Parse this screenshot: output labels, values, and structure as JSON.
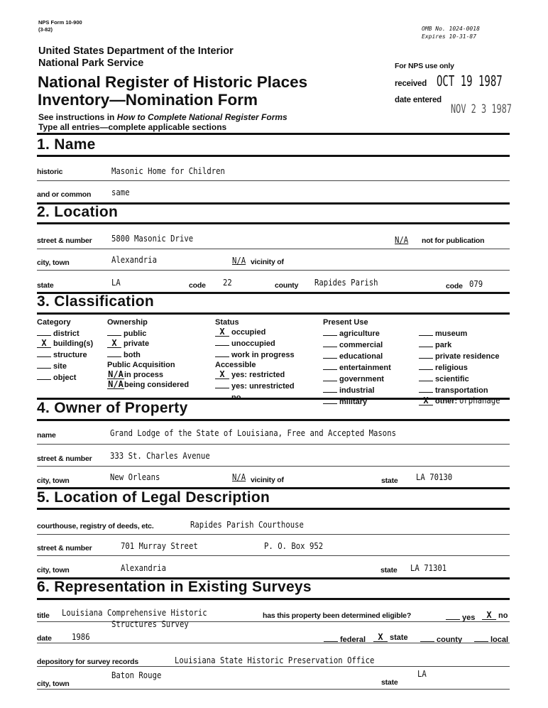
{
  "header": {
    "form_no": "NPS Form 10-900",
    "form_rev": "(3-82)",
    "omb": "OMB No. 1024-0018",
    "expires": "Expires 10-31-87",
    "dept": "United States Department of the Interior",
    "service": "National Park Service",
    "title1": "National Register of Historic Places",
    "title2": "Inventory—Nomination Form",
    "instr_prefix": "See instructions in ",
    "instr_italic": "How to Complete National Register Forms",
    "instr2": "Type all entries—complete applicable sections",
    "nps_use": "For NPS use only",
    "received_label": "received",
    "received_stamp": "OCT 19 1987",
    "entered_label": "date entered",
    "entered_stamp": "NOV 2 3 1987"
  },
  "s1": {
    "heading": "1. Name",
    "historic_label": "historic",
    "historic": "Masonic Home for Children",
    "common_label": "and or common",
    "common": "same"
  },
  "s2": {
    "heading": "2. Location",
    "street_label": "street & number",
    "street": "5800 Masonic Drive",
    "nfp_mark": "N/A",
    "nfp_label": "not for publication",
    "city_label": "city, town",
    "city": "Alexandria",
    "vic_mark": "N/A",
    "vic_label": "vicinity of",
    "state_label": "state",
    "state": "LA",
    "code_label": "code",
    "state_code": "22",
    "county_label": "county",
    "county": "Rapides Parish",
    "code2_label": "code",
    "county_code": "079"
  },
  "s3": {
    "heading": "3. Classification",
    "category": {
      "title": "Category",
      "items": [
        {
          "mark": "",
          "label": "district"
        },
        {
          "mark": "X",
          "label": "building(s)"
        },
        {
          "mark": "",
          "label": "structure"
        },
        {
          "mark": "",
          "label": "site"
        },
        {
          "mark": "",
          "label": "object"
        }
      ]
    },
    "ownership": {
      "title": "Ownership",
      "items": [
        {
          "mark": "",
          "label": "public"
        },
        {
          "mark": "X",
          "label": "private"
        },
        {
          "mark": "",
          "label": "both"
        }
      ]
    },
    "acquisition": {
      "title": "Public Acquisition",
      "items": [
        {
          "mark": "N/A",
          "label": "in process"
        },
        {
          "mark": "N/A",
          "label": "being considered"
        }
      ]
    },
    "status": {
      "title": "Status",
      "items": [
        {
          "mark": "X",
          "label": "occupied"
        },
        {
          "mark": "",
          "label": "unoccupied"
        },
        {
          "mark": "",
          "label": "work in progress"
        }
      ]
    },
    "accessible": {
      "title": "Accessible",
      "items": [
        {
          "mark": "X",
          "label": "yes: restricted"
        },
        {
          "mark": "",
          "label": "yes: unrestricted"
        },
        {
          "mark": "",
          "label": "no"
        }
      ]
    },
    "use": {
      "title": "Present Use",
      "col1": [
        {
          "mark": "",
          "label": "agriculture"
        },
        {
          "mark": "",
          "label": "commercial"
        },
        {
          "mark": "",
          "label": "educational"
        },
        {
          "mark": "",
          "label": "entertainment"
        },
        {
          "mark": "",
          "label": "government"
        },
        {
          "mark": "",
          "label": "industrial"
        },
        {
          "mark": "",
          "label": "military"
        }
      ],
      "col2": [
        {
          "mark": "",
          "label": "museum"
        },
        {
          "mark": "",
          "label": "park"
        },
        {
          "mark": "",
          "label": "private residence"
        },
        {
          "mark": "",
          "label": "religious"
        },
        {
          "mark": "",
          "label": "scientific"
        },
        {
          "mark": "",
          "label": "transportation"
        },
        {
          "mark": "X",
          "label": "other:"
        }
      ],
      "other_value": "orphanage"
    }
  },
  "s4": {
    "heading": "4. Owner of Property",
    "name_label": "name",
    "name": "Grand Lodge of the State of Louisiana, Free and Accepted Masons",
    "street_label": "street & number",
    "street": "333 St. Charles Avenue",
    "city_label": "city, town",
    "city": "New Orleans",
    "vic_mark": "N/A",
    "vic_label": "vicinity of",
    "state_label": "state",
    "state": "LA 70130"
  },
  "s5": {
    "heading": "5. Location of Legal Description",
    "court_label": "courthouse, registry of deeds, etc.",
    "court": "Rapides Parish Courthouse",
    "street_label": "street & number",
    "street": "701 Murray Street",
    "box": "P. O. Box 952",
    "city_label": "city, town",
    "city": "Alexandria",
    "state_label": "state",
    "state": "LA 71301"
  },
  "s6": {
    "heading": "6. Representation in Existing Surveys",
    "title_label": "title",
    "title1": "Louisiana Comprehensive Historic",
    "title2": "Structures Survey",
    "elig_label": "has this property been determined eligible?",
    "yes_mark": "",
    "yes_label": "yes",
    "no_mark": "X",
    "no_label": "no",
    "date_label": "date",
    "date": "1986",
    "federal_mark": "",
    "federal_label": "federal",
    "state_mark": "X",
    "state_label2": "state",
    "county_mark": "",
    "county_label": "county",
    "local_mark": "",
    "local_label": "local",
    "dep_label": "depository for survey records",
    "dep": "Louisiana State Historic Preservation Office",
    "city_label": "city, town",
    "city": "Baton Rouge",
    "state_label": "state",
    "state": "LA"
  }
}
